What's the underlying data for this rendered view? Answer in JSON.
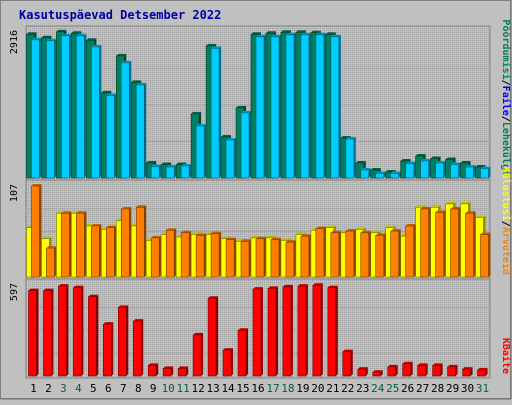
{
  "chart_data": [
    {
      "type": "bar",
      "title": "Kasutuspäevad Detsember 2022",
      "ylabel_top": "2916",
      "legend": [
        {
          "label": "Lehekülgi",
          "color": "#00805c"
        },
        {
          "label": "Faile",
          "color": "#0000ff"
        },
        {
          "label": "Pöördumisi",
          "color": "#00805c"
        }
      ],
      "legend_separator": "/",
      "categories": [
        "1",
        "2",
        "3",
        "4",
        "5",
        "6",
        "7",
        "8",
        "9",
        "10",
        "11",
        "12",
        "13",
        "14",
        "15",
        "16",
        "17",
        "18",
        "19",
        "20",
        "21",
        "22",
        "23",
        "24",
        "25",
        "26",
        "27",
        "28",
        "29",
        "30",
        "31"
      ],
      "weekend_days": [
        3,
        4,
        10,
        11,
        17,
        18,
        24,
        25,
        31
      ],
      "ylim": [
        0,
        2916
      ],
      "series": [
        {
          "name": "Pöördumisi",
          "color": "#008060",
          "values": [
            2870,
            2800,
            2920,
            2890,
            2750,
            1700,
            2440,
            1910,
            300,
            270,
            270,
            1280,
            2640,
            820,
            1400,
            2870,
            2890,
            2910,
            2910,
            2900,
            2870,
            800,
            300,
            160,
            120,
            340,
            440,
            390,
            370,
            300,
            220
          ]
        },
        {
          "name": "Faile",
          "color": "#00ccff",
          "values": [
            2760,
            2740,
            2840,
            2840,
            2620,
            1650,
            2300,
            1860,
            230,
            220,
            240,
            1040,
            2590,
            760,
            1300,
            2820,
            2820,
            2860,
            2860,
            2860,
            2820,
            780,
            160,
            90,
            90,
            290,
            340,
            300,
            270,
            220,
            190
          ]
        }
      ]
    },
    {
      "type": "bar",
      "ylabel_top": "107",
      "legend": [
        {
          "label": "Arvuteid",
          "color": "#ff8000"
        },
        {
          "label": "Külastusi",
          "color": "#ffff00"
        }
      ],
      "legend_separator": "/",
      "categories": [
        "1",
        "2",
        "3",
        "4",
        "5",
        "6",
        "7",
        "8",
        "9",
        "10",
        "11",
        "12",
        "13",
        "14",
        "15",
        "16",
        "17",
        "18",
        "19",
        "20",
        "21",
        "22",
        "23",
        "24",
        "25",
        "26",
        "27",
        "28",
        "29",
        "30",
        "31"
      ],
      "ylim": [
        0,
        107
      ],
      "series": [
        {
          "name": "Külastusi",
          "color": "#ffff00",
          "values": [
            58,
            45,
            75,
            75,
            60,
            56,
            66,
            60,
            43,
            50,
            47,
            50,
            50,
            45,
            42,
            46,
            46,
            43,
            50,
            55,
            58,
            52,
            56,
            52,
            58,
            48,
            82,
            82,
            86,
            86,
            70
          ]
        },
        {
          "name": "Arvuteid",
          "color": "#ff8000",
          "values": [
            107,
            34,
            75,
            75,
            60,
            58,
            80,
            82,
            46,
            55,
            52,
            49,
            51,
            44,
            42,
            45,
            44,
            41,
            48,
            57,
            52,
            54,
            52,
            49,
            54,
            60,
            80,
            76,
            80,
            75,
            50
          ]
        }
      ]
    },
    {
      "type": "bar",
      "ylabel_top": "597",
      "legend": [
        {
          "label": "KBaite",
          "color": "#ff0000"
        }
      ],
      "categories": [
        "1",
        "2",
        "3",
        "4",
        "5",
        "6",
        "7",
        "8",
        "9",
        "10",
        "11",
        "12",
        "13",
        "14",
        "15",
        "16",
        "17",
        "18",
        "19",
        "20",
        "21",
        "22",
        "23",
        "24",
        "25",
        "26",
        "27",
        "28",
        "29",
        "30",
        "31"
      ],
      "ylim": [
        0,
        597
      ],
      "series": [
        {
          "name": "KBaite",
          "color": "#ff0000",
          "values": [
            560,
            560,
            590,
            580,
            520,
            340,
            450,
            360,
            70,
            50,
            50,
            270,
            510,
            170,
            300,
            570,
            575,
            585,
            590,
            595,
            580,
            160,
            45,
            25,
            60,
            80,
            70,
            70,
            60,
            45,
            40
          ]
        }
      ]
    }
  ]
}
